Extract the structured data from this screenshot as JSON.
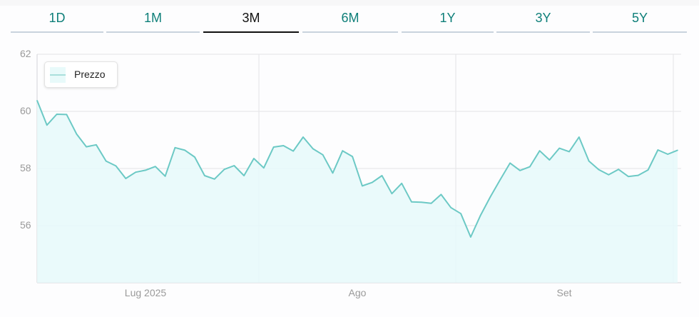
{
  "tabs": [
    {
      "label": "1D"
    },
    {
      "label": "1M"
    },
    {
      "label": "3M",
      "active": true
    },
    {
      "label": "6M"
    },
    {
      "label": "1Y"
    },
    {
      "label": "3Y"
    },
    {
      "label": "5Y"
    }
  ],
  "chart_data": {
    "type": "area",
    "legend": {
      "label": "Prezzo",
      "position": "top-left"
    },
    "ylim": [
      54,
      62
    ],
    "y_ticks": [
      "62",
      "60",
      "58",
      "56"
    ],
    "x_ticks": [
      "Lug 2025",
      "Ago",
      "Set"
    ],
    "grid": true,
    "colors": {
      "line": "#6cc9c5",
      "fill": "#e6f9fa"
    },
    "series": [
      {
        "name": "Prezzo",
        "values": [
          60.38,
          59.52,
          59.9,
          59.89,
          59.21,
          58.76,
          58.83,
          58.26,
          58.09,
          57.65,
          57.87,
          57.94,
          58.07,
          57.73,
          58.73,
          58.64,
          58.4,
          57.75,
          57.63,
          57.97,
          58.1,
          57.75,
          58.35,
          58.02,
          58.75,
          58.8,
          58.61,
          59.1,
          58.69,
          58.48,
          57.84,
          58.62,
          58.42,
          57.39,
          57.51,
          57.75,
          57.12,
          57.48,
          56.83,
          56.82,
          56.78,
          57.09,
          56.63,
          56.42,
          55.6,
          56.36,
          57.01,
          57.61,
          58.19,
          57.93,
          58.06,
          58.62,
          58.3,
          58.71,
          58.59,
          59.1,
          58.26,
          57.96,
          57.78,
          57.97,
          57.72,
          57.76,
          57.95,
          58.65,
          58.5,
          58.64
        ]
      }
    ]
  }
}
